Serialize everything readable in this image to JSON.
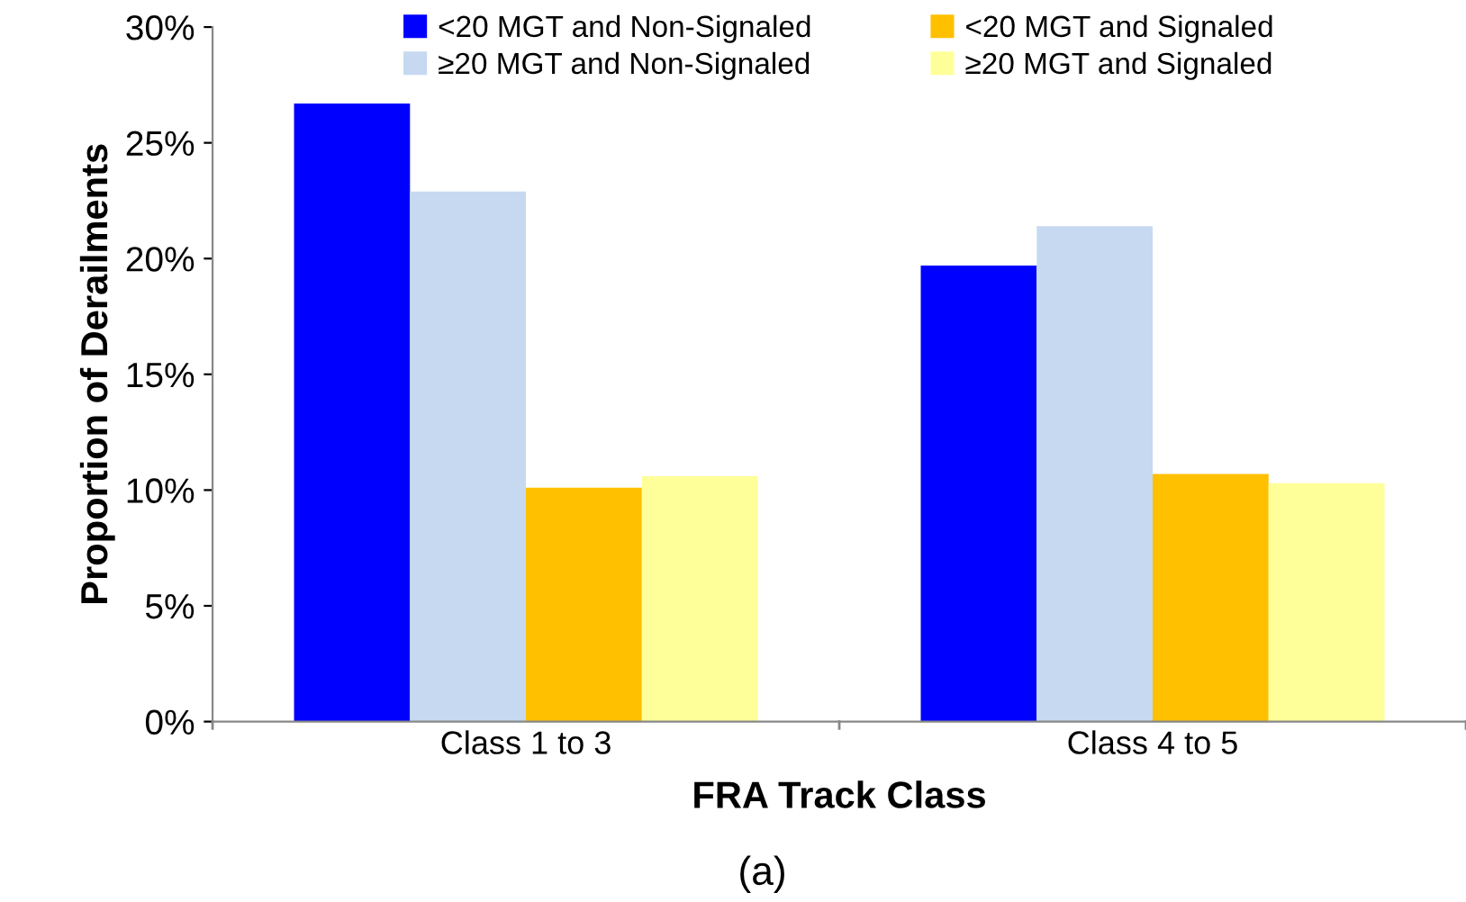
{
  "chart_data": {
    "type": "bar",
    "xlabel": "FRA Track Class",
    "ylabel": "Proportion of Derailments",
    "annotations": [
      "(a)"
    ],
    "categories": [
      "Class 1 to 3",
      "Class 4 to 5"
    ],
    "series": [
      {
        "name": "<20 MGT and Non-Signaled",
        "color": "#0000ff",
        "values": [
          26.7,
          19.7
        ]
      },
      {
        "name": "≥20 MGT and Non-Signaled",
        "color": "#c6d9f1",
        "values": [
          22.9,
          21.4
        ]
      },
      {
        "name": "<20 MGT and Signaled",
        "color": "#ffc000",
        "values": [
          10.1,
          10.7
        ]
      },
      {
        "name": "≥20 MGT and Signaled",
        "color": "#ffff99",
        "values": [
          10.6,
          10.3
        ]
      }
    ],
    "ylim": [
      0,
      30
    ],
    "yticks": [
      {
        "value": 0,
        "label": "0%"
      },
      {
        "value": 5,
        "label": "5%"
      },
      {
        "value": 10,
        "label": "10%"
      },
      {
        "value": 15,
        "label": "15%"
      },
      {
        "value": 20,
        "label": "20%"
      },
      {
        "value": 25,
        "label": "25%"
      },
      {
        "value": 30,
        "label": "30%"
      }
    ],
    "grid": false,
    "legend": "top"
  }
}
